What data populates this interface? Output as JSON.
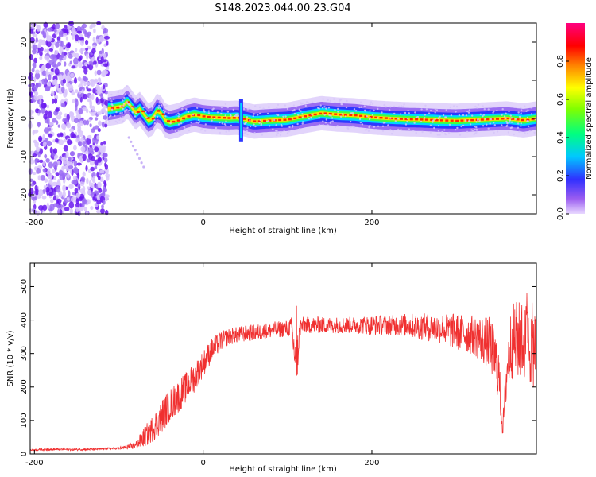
{
  "figure": {
    "title": "S148.2023.044.00.23.G04"
  },
  "chart_data": [
    {
      "type": "heatmap",
      "xlabel": "Height of straight line (km)",
      "ylabel": "Frequency (Hz)",
      "xlim": [
        -205,
        395
      ],
      "ylim": [
        -25,
        25
      ],
      "x_ticks": [
        -200,
        0,
        200
      ],
      "y_ticks": [
        -20,
        -10,
        0,
        10,
        20
      ],
      "grid": false,
      "colorbar": {
        "label": "Normalized spectral amplitude",
        "range": [
          0,
          1
        ],
        "ticks": [
          0.0,
          0.2,
          0.4,
          0.6,
          0.8
        ],
        "colormap": "hsv (purple → blue → cyan → green → yellow → red → magenta)"
      },
      "ridge": {
        "x": [
          -113,
          -105,
          -95,
          -90,
          -85,
          -80,
          -75,
          -70,
          -65,
          -60,
          -55,
          -50,
          -45,
          -40,
          -30,
          -20,
          -10,
          0,
          10,
          20,
          30,
          40,
          45,
          50,
          60,
          80,
          100,
          120,
          140,
          160,
          180,
          200,
          220,
          240,
          260,
          280,
          300,
          320,
          340,
          360,
          380,
          395
        ],
        "y": [
          2.5,
          2.8,
          3.2,
          4.5,
          3.0,
          1.5,
          2.5,
          1.0,
          -0.5,
          0.0,
          2.0,
          1.5,
          -0.5,
          -1.0,
          -0.5,
          0.5,
          1.0,
          0.5,
          0.3,
          0.2,
          0.1,
          0.2,
          0.0,
          -0.3,
          -0.8,
          -0.5,
          -0.3,
          0.6,
          1.4,
          1.0,
          0.8,
          0.3,
          0.0,
          -0.2,
          -0.3,
          -0.5,
          -0.6,
          -0.4,
          -0.2,
          0.0,
          -0.5,
          0.0
        ]
      },
      "noise_region_x": [
        -205,
        -113
      ],
      "spike_x": 45
    },
    {
      "type": "line",
      "xlabel": "Height of straight line (km)",
      "ylabel": "SNR (10 * v/v)",
      "xlim": [
        -205,
        395
      ],
      "ylim": [
        0,
        570
      ],
      "x_ticks": [
        -200,
        0,
        200
      ],
      "y_ticks": [
        0,
        100,
        200,
        300,
        400,
        500
      ],
      "grid": false,
      "color": "#f03030",
      "series": [
        {
          "x": [
            -205,
            -180,
            -150,
            -120,
            -100,
            -80,
            -70,
            -60,
            -50,
            -40,
            -30,
            -20,
            -10,
            0,
            10,
            20,
            30,
            40,
            50,
            60,
            70,
            80,
            90,
            100,
            105,
            110,
            115,
            120,
            140,
            160,
            180,
            200,
            220,
            240,
            260,
            280,
            300,
            320,
            340,
            350,
            355,
            360,
            365,
            370,
            380,
            395
          ],
          "y": [
            12,
            14,
            13,
            15,
            17,
            25,
            50,
            75,
            110,
            145,
            170,
            200,
            230,
            270,
            310,
            335,
            350,
            355,
            360,
            362,
            365,
            370,
            372,
            375,
            380,
            250,
            380,
            385,
            385,
            385,
            385,
            385,
            385,
            385,
            380,
            375,
            365,
            355,
            330,
            250,
            70,
            250,
            330,
            340,
            335,
            320
          ],
          "spread": [
            3,
            3,
            3,
            3,
            3,
            12,
            30,
            40,
            50,
            50,
            50,
            45,
            45,
            40,
            35,
            30,
            25,
            25,
            25,
            25,
            25,
            25,
            25,
            25,
            30,
            90,
            30,
            25,
            25,
            25,
            25,
            30,
            30,
            35,
            40,
            45,
            55,
            60,
            80,
            90,
            20,
            90,
            110,
            120,
            120,
            130
          ]
        }
      ]
    }
  ]
}
